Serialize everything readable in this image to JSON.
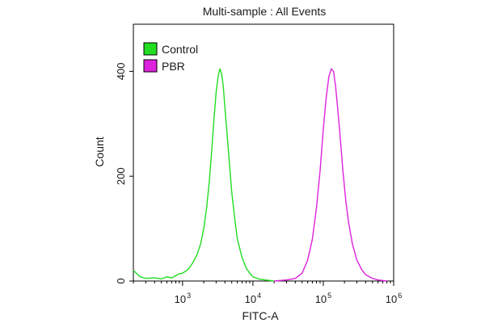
{
  "chart_data": {
    "type": "line",
    "title": "Multi-sample : All Events",
    "xlabel": "FITC-A",
    "ylabel": "Count",
    "x_scale": "log",
    "xlim": [
      200,
      1000000
    ],
    "ylim": [
      0,
      490
    ],
    "x_ticks": [
      {
        "value": 1000,
        "base": "10",
        "exp": "3"
      },
      {
        "value": 10000,
        "base": "10",
        "exp": "4"
      },
      {
        "value": 100000,
        "base": "10",
        "exp": "5"
      },
      {
        "value": 1000000,
        "base": "10",
        "exp": "6"
      }
    ],
    "y_ticks": [
      {
        "value": 0,
        "label": "0"
      },
      {
        "value": 200,
        "label": "200"
      },
      {
        "value": 400,
        "label": "400"
      }
    ],
    "grid": false,
    "legend_position": "top-left",
    "series": [
      {
        "name": "Control",
        "color": "#22dd22",
        "points": [
          [
            200,
            20
          ],
          [
            250,
            8
          ],
          [
            300,
            5
          ],
          [
            400,
            6
          ],
          [
            500,
            4
          ],
          [
            600,
            8
          ],
          [
            700,
            6
          ],
          [
            800,
            10
          ],
          [
            900,
            14
          ],
          [
            1000,
            15
          ],
          [
            1200,
            22
          ],
          [
            1400,
            35
          ],
          [
            1600,
            50
          ],
          [
            1800,
            70
          ],
          [
            2000,
            100
          ],
          [
            2200,
            140
          ],
          [
            2400,
            190
          ],
          [
            2600,
            250
          ],
          [
            2800,
            310
          ],
          [
            3000,
            360
          ],
          [
            3200,
            390
          ],
          [
            3400,
            405
          ],
          [
            3600,
            395
          ],
          [
            3800,
            370
          ],
          [
            4000,
            330
          ],
          [
            4300,
            280
          ],
          [
            4600,
            230
          ],
          [
            5000,
            170
          ],
          [
            5500,
            120
          ],
          [
            6000,
            80
          ],
          [
            7000,
            45
          ],
          [
            8000,
            25
          ],
          [
            9000,
            15
          ],
          [
            10000,
            8
          ],
          [
            12000,
            4
          ],
          [
            15000,
            2
          ],
          [
            20000,
            0
          ]
        ]
      },
      {
        "name": "PBR",
        "color": "#dd22dd",
        "points": [
          [
            20000,
            0
          ],
          [
            30000,
            2
          ],
          [
            40000,
            5
          ],
          [
            50000,
            15
          ],
          [
            60000,
            40
          ],
          [
            70000,
            80
          ],
          [
            80000,
            140
          ],
          [
            90000,
            210
          ],
          [
            100000,
            290
          ],
          [
            110000,
            350
          ],
          [
            120000,
            390
          ],
          [
            130000,
            405
          ],
          [
            140000,
            400
          ],
          [
            150000,
            370
          ],
          [
            160000,
            330
          ],
          [
            175000,
            270
          ],
          [
            190000,
            210
          ],
          [
            210000,
            150
          ],
          [
            230000,
            110
          ],
          [
            260000,
            70
          ],
          [
            300000,
            40
          ],
          [
            350000,
            22
          ],
          [
            400000,
            12
          ],
          [
            500000,
            5
          ],
          [
            600000,
            2
          ],
          [
            800000,
            0
          ]
        ]
      }
    ]
  }
}
